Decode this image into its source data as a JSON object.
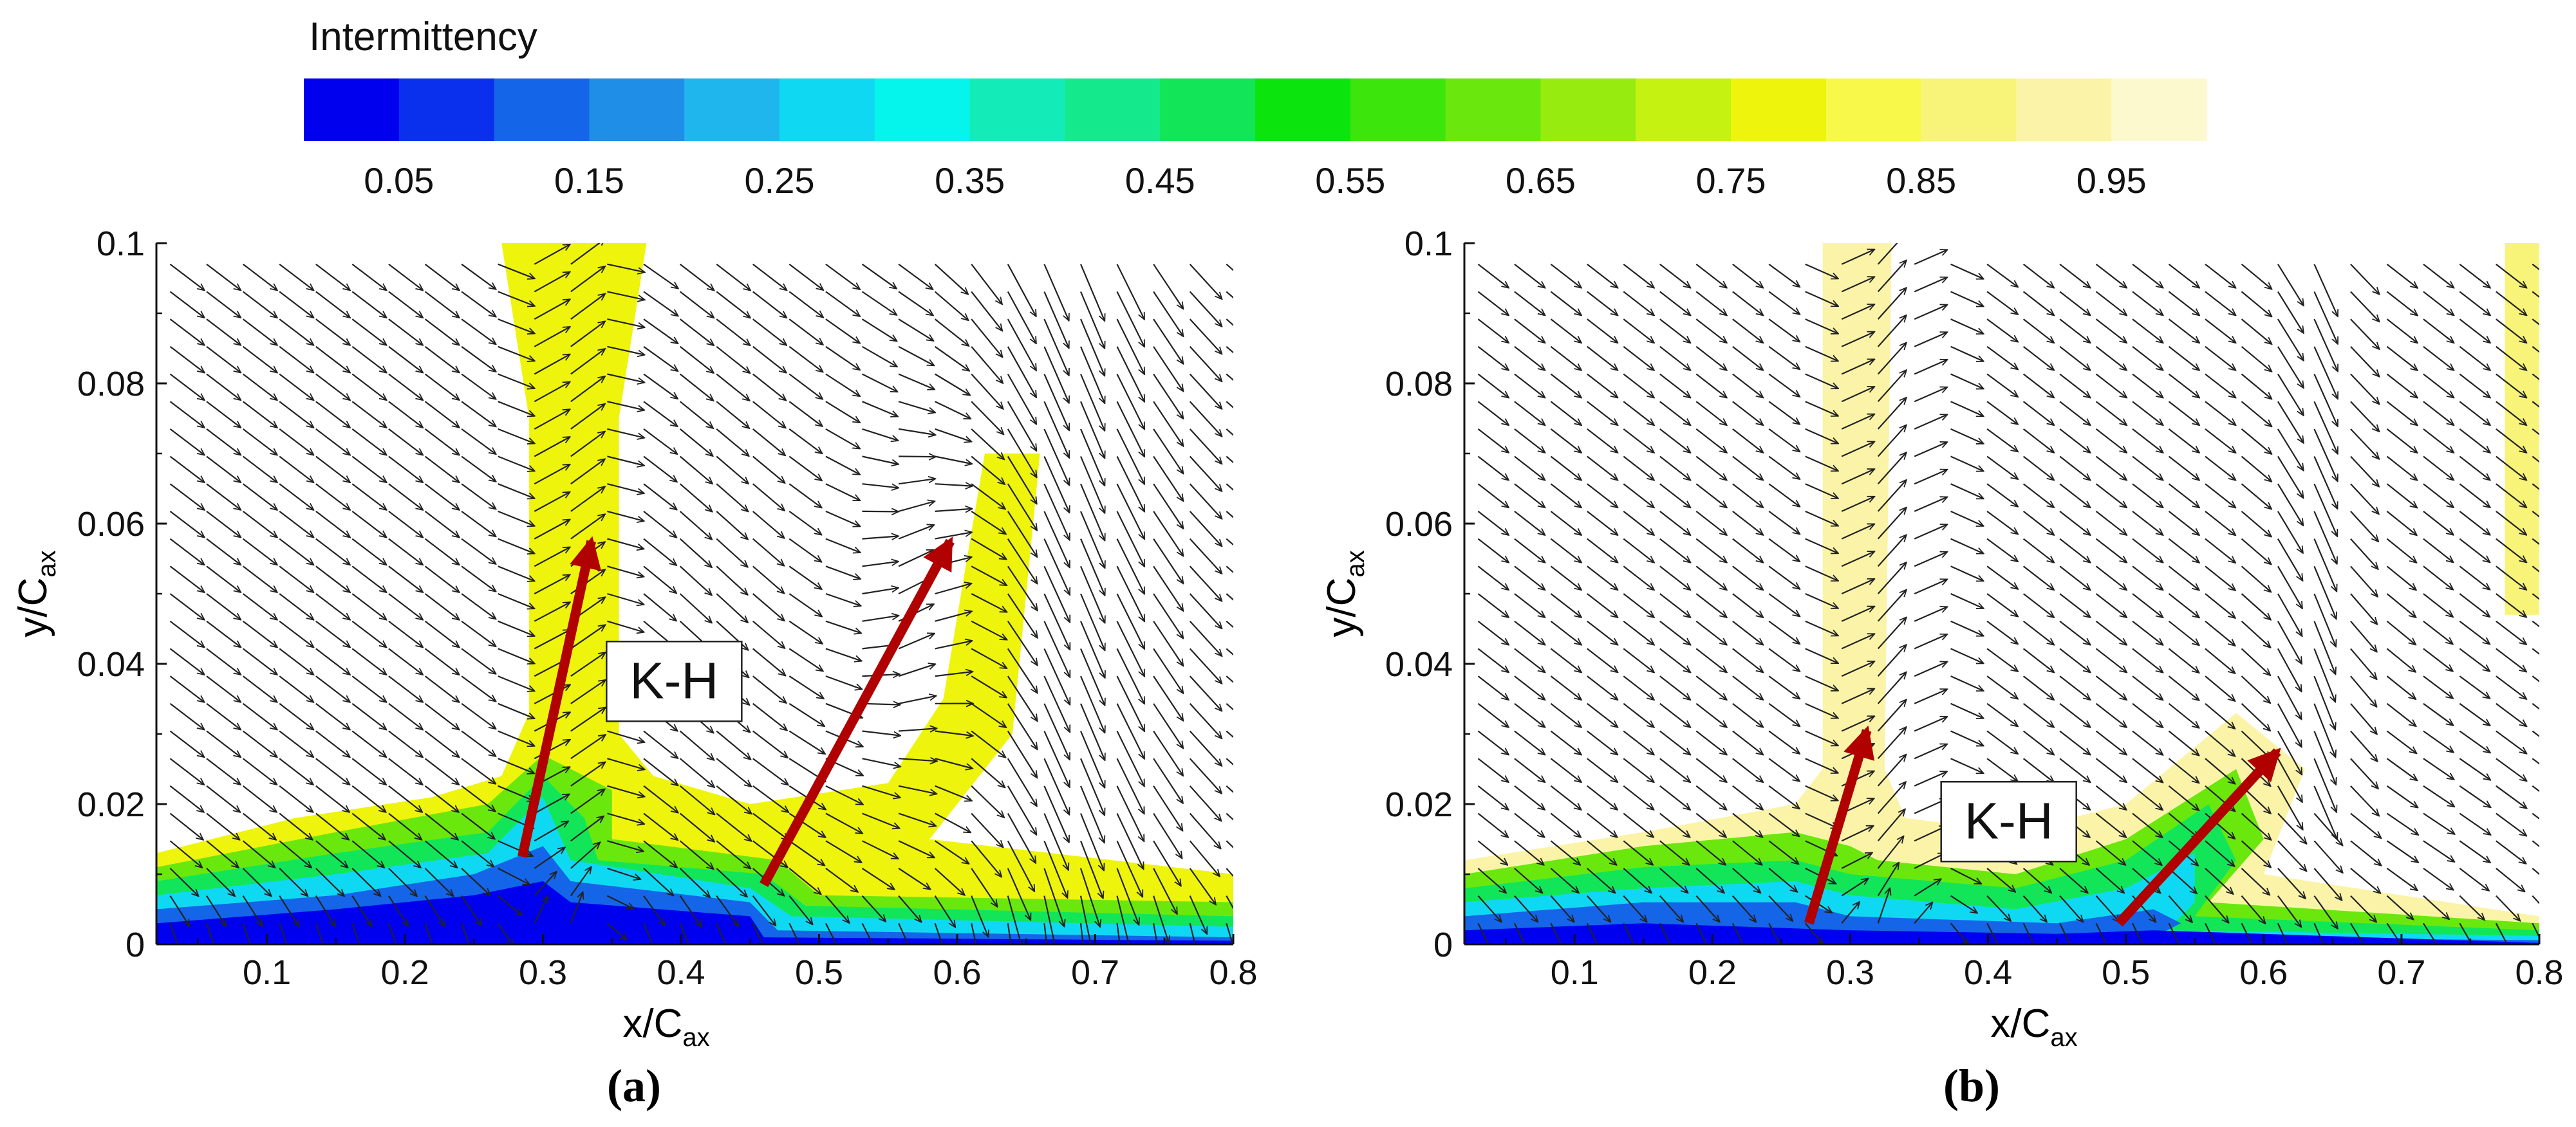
{
  "chart_data": {
    "colorbar": {
      "title": "Intermittency",
      "min": 0.0,
      "max": 1.0,
      "levels": [
        0.0,
        0.05,
        0.1,
        0.15,
        0.2,
        0.25,
        0.3,
        0.35,
        0.4,
        0.45,
        0.5,
        0.55,
        0.6,
        0.65,
        0.7,
        0.75,
        0.8,
        0.85,
        0.9,
        0.95
      ],
      "tick_labels": [
        "0.05",
        "0.15",
        "0.25",
        "0.35",
        "0.45",
        "0.55",
        "0.65",
        "0.75",
        "0.85",
        "0.95"
      ],
      "tick_values": [
        0.05,
        0.15,
        0.25,
        0.35,
        0.45,
        0.55,
        0.65,
        0.75,
        0.85,
        0.95
      ],
      "colors": [
        "#0000ee",
        "#0a30ee",
        "#1565e8",
        "#1f8ee6",
        "#1fb6ee",
        "#0fd9f2",
        "#05f4ec",
        "#13ecb8",
        "#14ea8c",
        "#12e658",
        "#0ce40e",
        "#3ce60c",
        "#6ae80e",
        "#98eb0e",
        "#c5f210",
        "#eef40c",
        "#f8f84a",
        "#f8f479",
        "#fbf4a8",
        "#fdf9cf"
      ]
    },
    "panels": [
      {
        "id": "a",
        "type": "contour",
        "label": "(a)",
        "xlabel_main": "x/C",
        "xlabel_sub": "ax",
        "ylabel_main": "y/C",
        "ylabel_sub": "ax",
        "xlim": [
          0.02,
          0.8
        ],
        "ylim": [
          0.0,
          0.1
        ],
        "xticks": [
          "0.1",
          "0.2",
          "0.3",
          "0.4",
          "0.5",
          "0.6",
          "0.7",
          "0.8"
        ],
        "xtick_values": [
          0.1,
          0.2,
          0.3,
          0.4,
          0.5,
          0.6,
          0.7,
          0.8
        ],
        "yticks": [
          "0",
          "0.02",
          "0.04",
          "0.06",
          "0.08",
          "0.1"
        ],
        "ytick_values": [
          0,
          0.02,
          0.04,
          0.06,
          0.08,
          0.1
        ],
        "annotation": {
          "text": "K-H",
          "x": 0.395,
          "y": 0.0375
        },
        "arrows": [
          {
            "x0": 0.285,
            "y0": 0.0125,
            "x1": 0.335,
            "y1": 0.0575
          },
          {
            "x0": 0.46,
            "y0": 0.0085,
            "x1": 0.595,
            "y1": 0.0575
          }
        ],
        "contours": [
          {
            "level": 0.78,
            "points": [
              [
                0.02,
                0.013
              ],
              [
                0.12,
                0.018
              ],
              [
                0.22,
                0.021
              ],
              [
                0.27,
                0.024
              ],
              [
                0.29,
                0.033
              ],
              [
                0.29,
                0.075
              ],
              [
                0.27,
                0.1
              ],
              [
                0.375,
                0.1
              ],
              [
                0.355,
                0.075
              ],
              [
                0.355,
                0.03
              ],
              [
                0.38,
                0.024
              ],
              [
                0.45,
                0.02
              ],
              [
                0.55,
                0.023
              ],
              [
                0.59,
                0.035
              ],
              [
                0.62,
                0.07
              ],
              [
                0.66,
                0.07
              ],
              [
                0.64,
                0.03
              ],
              [
                0.58,
                0.015
              ],
              [
                0.8,
                0.01
              ],
              [
                0.8,
                0
              ],
              [
                0.02,
                0
              ]
            ]
          },
          {
            "level": 0.62,
            "points": [
              [
                0.02,
                0.011
              ],
              [
                0.15,
                0.016
              ],
              [
                0.26,
                0.02
              ],
              [
                0.3,
                0.027
              ],
              [
                0.35,
                0.022
              ],
              [
                0.35,
                0.015
              ],
              [
                0.47,
                0.012
              ],
              [
                0.5,
                0.007
              ],
              [
                0.8,
                0.006
              ],
              [
                0.8,
                0
              ],
              [
                0.02,
                0
              ]
            ]
          },
          {
            "level": 0.45,
            "points": [
              [
                0.02,
                0.009
              ],
              [
                0.15,
                0.013
              ],
              [
                0.26,
                0.016
              ],
              [
                0.3,
                0.024
              ],
              [
                0.33,
                0.018
              ],
              [
                0.34,
                0.012
              ],
              [
                0.46,
                0.01
              ],
              [
                0.49,
                0.0055
              ],
              [
                0.8,
                0.004
              ],
              [
                0.8,
                0
              ],
              [
                0.02,
                0
              ]
            ]
          },
          {
            "level": 0.28,
            "points": [
              [
                0.02,
                0.007
              ],
              [
                0.15,
                0.01
              ],
              [
                0.26,
                0.013
              ],
              [
                0.3,
                0.021
              ],
              [
                0.32,
                0.012
              ],
              [
                0.45,
                0.008
              ],
              [
                0.48,
                0.004
              ],
              [
                0.8,
                0.0025
              ],
              [
                0.8,
                0
              ],
              [
                0.02,
                0
              ]
            ]
          },
          {
            "level": 0.12,
            "points": [
              [
                0.02,
                0.005
              ],
              [
                0.15,
                0.007
              ],
              [
                0.25,
                0.01
              ],
              [
                0.3,
                0.014
              ],
              [
                0.32,
                0.009
              ],
              [
                0.45,
                0.006
              ],
              [
                0.47,
                0.002
              ],
              [
                0.8,
                0.001
              ],
              [
                0.8,
                0
              ],
              [
                0.02,
                0
              ]
            ]
          },
          {
            "level": 0.02,
            "points": [
              [
                0.02,
                0.003
              ],
              [
                0.15,
                0.005
              ],
              [
                0.25,
                0.007
              ],
              [
                0.3,
                0.009
              ],
              [
                0.32,
                0.006
              ],
              [
                0.45,
                0.004
              ],
              [
                0.46,
                0.001
              ],
              [
                0.8,
                0.0005
              ],
              [
                0.8,
                0
              ],
              [
                0.02,
                0
              ]
            ]
          }
        ]
      },
      {
        "id": "b",
        "type": "contour",
        "label": "(b)",
        "xlabel_main": "x/C",
        "xlabel_sub": "ax",
        "ylabel_main": "y/C",
        "ylabel_sub": "ax",
        "xlim": [
          0.02,
          0.8
        ],
        "ylim": [
          0.0,
          0.1
        ],
        "xticks": [
          "0.1",
          "0.2",
          "0.3",
          "0.4",
          "0.5",
          "0.6",
          "0.7",
          "0.8"
        ],
        "xtick_values": [
          0.1,
          0.2,
          0.3,
          0.4,
          0.5,
          0.6,
          0.7,
          0.8
        ],
        "yticks": [
          "0",
          "0.02",
          "0.04",
          "0.06",
          "0.08",
          "0.1"
        ],
        "ytick_values": [
          0,
          0.02,
          0.04,
          0.06,
          0.08,
          0.1
        ],
        "annotation": {
          "text": "K-H",
          "x": 0.415,
          "y": 0.0175
        },
        "arrows": [
          {
            "x0": 0.27,
            "y0": 0.003,
            "x1": 0.312,
            "y1": 0.0305
          },
          {
            "x0": 0.495,
            "y0": 0.003,
            "x1": 0.61,
            "y1": 0.0275
          }
        ],
        "contours": [
          {
            "level": 0.9,
            "points": [
              [
                0.02,
                0.012
              ],
              [
                0.15,
                0.016
              ],
              [
                0.26,
                0.02
              ],
              [
                0.28,
                0.025
              ],
              [
                0.28,
                0.1
              ],
              [
                0.33,
                0.1
              ],
              [
                0.325,
                0.025
              ],
              [
                0.34,
                0.018
              ],
              [
                0.42,
                0.016
              ],
              [
                0.5,
                0.02
              ],
              [
                0.58,
                0.033
              ],
              [
                0.63,
                0.025
              ],
              [
                0.6,
                0.01
              ],
              [
                0.8,
                0.004
              ],
              [
                0.8,
                0
              ],
              [
                0.02,
                0
              ]
            ]
          },
          {
            "level": 0.88,
            "points": [
              [
                0.775,
                0.1
              ],
              [
                0.8,
                0.1
              ],
              [
                0.8,
                0.047
              ],
              [
                0.775,
                0.047
              ]
            ]
          },
          {
            "level": 0.62,
            "points": [
              [
                0.02,
                0.01
              ],
              [
                0.15,
                0.014
              ],
              [
                0.26,
                0.016
              ],
              [
                0.3,
                0.014
              ],
              [
                0.32,
                0.012
              ],
              [
                0.42,
                0.01
              ],
              [
                0.5,
                0.015
              ],
              [
                0.58,
                0.025
              ],
              [
                0.6,
                0.015
              ],
              [
                0.56,
                0.006
              ],
              [
                0.8,
                0.003
              ],
              [
                0.8,
                0
              ],
              [
                0.02,
                0
              ]
            ]
          },
          {
            "level": 0.45,
            "points": [
              [
                0.02,
                0.008
              ],
              [
                0.15,
                0.011
              ],
              [
                0.26,
                0.012
              ],
              [
                0.3,
                0.01
              ],
              [
                0.42,
                0.008
              ],
              [
                0.5,
                0.012
              ],
              [
                0.56,
                0.02
              ],
              [
                0.58,
                0.012
              ],
              [
                0.55,
                0.004
              ],
              [
                0.8,
                0.002
              ],
              [
                0.8,
                0
              ],
              [
                0.02,
                0
              ]
            ]
          },
          {
            "level": 0.28,
            "points": [
              [
                0.02,
                0.006
              ],
              [
                0.15,
                0.008
              ],
              [
                0.26,
                0.009
              ],
              [
                0.3,
                0.007
              ],
              [
                0.42,
                0.005
              ],
              [
                0.5,
                0.008
              ],
              [
                0.55,
                0.013
              ],
              [
                0.55,
                0.006
              ],
              [
                0.53,
                0.002
              ],
              [
                0.8,
                0.0012
              ],
              [
                0.8,
                0
              ],
              [
                0.02,
                0
              ]
            ]
          },
          {
            "level": 0.12,
            "points": [
              [
                0.02,
                0.004
              ],
              [
                0.15,
                0.006
              ],
              [
                0.26,
                0.006
              ],
              [
                0.3,
                0.004
              ],
              [
                0.45,
                0.003
              ],
              [
                0.52,
                0.005
              ],
              [
                0.54,
                0.003
              ],
              [
                0.52,
                0.001
              ],
              [
                0.8,
                0.0006
              ],
              [
                0.8,
                0
              ],
              [
                0.02,
                0
              ]
            ]
          },
          {
            "level": 0.02,
            "points": [
              [
                0.02,
                0.002
              ],
              [
                0.15,
                0.003
              ],
              [
                0.3,
                0.002
              ],
              [
                0.45,
                0.0015
              ],
              [
                0.52,
                0.002
              ],
              [
                0.8,
                0.0002
              ],
              [
                0.8,
                0
              ],
              [
                0.02,
                0
              ]
            ]
          }
        ]
      }
    ]
  }
}
